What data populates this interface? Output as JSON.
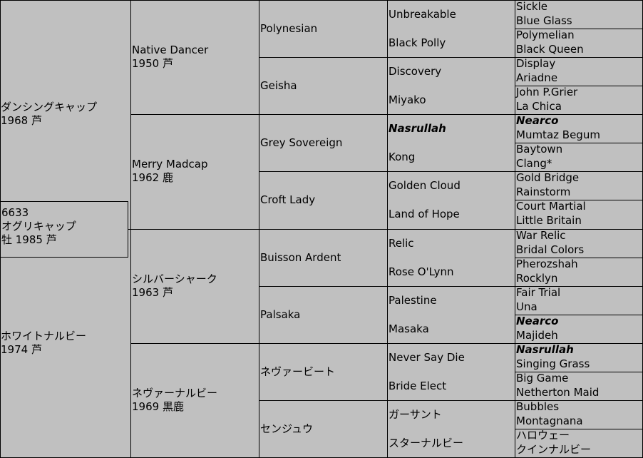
{
  "subject": {
    "id": "6633",
    "name": "オグリキャップ",
    "info": "牡 1985 芦"
  },
  "gen1": [
    {
      "name": "ダンシングキャップ",
      "info": "1968 芦"
    },
    {
      "name": "ホワイトナルビー",
      "info": "1974 芦"
    }
  ],
  "gen2": [
    {
      "name": "Native Dancer",
      "info": "1950 芦"
    },
    {
      "name": "Merry Madcap",
      "info": "1962 鹿"
    },
    {
      "name": "シルバーシャーク",
      "info": "1963 芦"
    },
    {
      "name": "ネヴァーナルビー",
      "info": "1969 黒鹿"
    }
  ],
  "gen3": [
    "Polynesian",
    "Geisha",
    "Grey Sovereign",
    "Croft Lady",
    "Buisson Ardent",
    "Palsaka",
    "ネヴァービート",
    "センジュウ"
  ],
  "gen4": [
    "Unbreakable",
    "Black Polly",
    "Discovery",
    "Miyako",
    "Nasrullah",
    "Kong",
    "Golden Cloud",
    "Land of Hope",
    "Relic",
    "Rose O'Lynn",
    "Palestine",
    "Masaka",
    "Never Say Die",
    "Bride Elect",
    "ガーサント",
    "スターナルビー"
  ],
  "gen5": [
    "Sickle",
    "Blue Glass",
    "Polymelian",
    "Black Queen",
    "Display",
    "Ariadne",
    "John P.Grier",
    "La Chica",
    "Nearco",
    "Mumtaz Begum",
    "Baytown",
    "Clang*",
    "Gold Bridge",
    "Rainstorm",
    "Court Martial",
    "Little Britain",
    "War Relic",
    "Bridal Colors",
    "Pherozshah",
    "Rocklyn",
    "Fair Trial",
    "Una",
    "Nearco",
    "Majideh",
    "Nasrullah",
    "Singing Grass",
    "Big Game",
    "Netherton Maid",
    "Bubbles",
    "Montagnana",
    "ハロウェー",
    "クインナルビー"
  ],
  "highlighted": [
    "Nasrullah",
    "Nearco"
  ]
}
